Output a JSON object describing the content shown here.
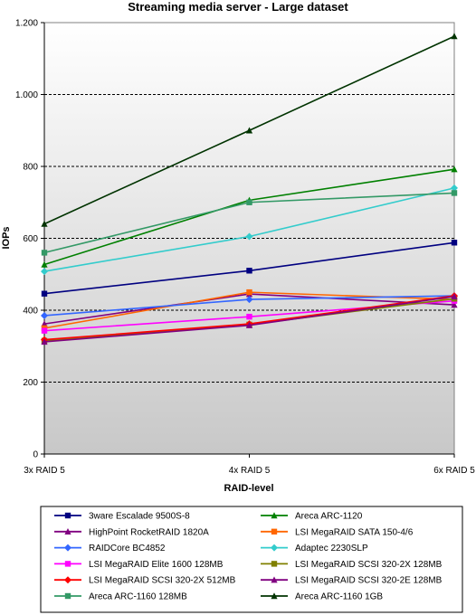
{
  "chart_data": {
    "type": "line",
    "title": "Streaming media server - Large dataset",
    "xlabel": "RAID-level",
    "ylabel": "IOPs",
    "categories": [
      "3x RAID 5",
      "4x RAID 5",
      "6x RAID 5"
    ],
    "ylim": [
      0,
      1200
    ],
    "yticks": [
      0,
      200,
      400,
      600,
      800,
      1000,
      1200
    ],
    "ytick_labels": [
      "0",
      "200",
      "400",
      "600",
      "800",
      "1.000",
      "1.200"
    ],
    "grid": "horizontal dashed",
    "legend_position": "bottom",
    "series": [
      {
        "name": "3ware Escalade 9500S-8",
        "color": "#000080",
        "marker": "square",
        "values": [
          446,
          510,
          588
        ]
      },
      {
        "name": "Areca ARC-1120",
        "color": "#008000",
        "marker": "triangle",
        "values": [
          527,
          706,
          792
        ]
      },
      {
        "name": "HighPoint RocketRAID 1820A",
        "color": "#800080",
        "marker": "triangle",
        "values": [
          362,
          445,
          415
        ]
      },
      {
        "name": "LSI MegaRAID SATA 150-4/6",
        "color": "#FF6600",
        "marker": "square",
        "values": [
          350,
          450,
          430
        ]
      },
      {
        "name": "RAIDCore BC4852",
        "color": "#3366FF",
        "marker": "diamond",
        "values": [
          385,
          430,
          440
        ]
      },
      {
        "name": "Adaptec 2230SLP",
        "color": "#33CCCC",
        "marker": "diamond",
        "values": [
          508,
          605,
          740
        ]
      },
      {
        "name": "LSI MegaRAID Elite 1600 128MB",
        "color": "#FF00FF",
        "marker": "square",
        "values": [
          343,
          382,
          426
        ]
      },
      {
        "name": "LSI MegaRAID SCSI 320-2X 128MB",
        "color": "#808000",
        "marker": "square",
        "values": [
          315,
          360,
          432
        ]
      },
      {
        "name": "LSI MegaRAID SCSI 320-2X 512MB",
        "color": "#FF0000",
        "marker": "diamond",
        "values": [
          318,
          362,
          440
        ]
      },
      {
        "name": "LSI MegaRAID SCSI 320-2E 128MB",
        "color": "#800080",
        "marker": "triangle",
        "values": [
          312,
          358,
          438
        ]
      },
      {
        "name": "Areca ARC-1160 128MB",
        "color": "#339966",
        "marker": "square",
        "values": [
          560,
          700,
          726
        ]
      },
      {
        "name": "Areca ARC-1160 1GB",
        "color": "#003300",
        "marker": "triangle",
        "values": [
          640,
          900,
          1162
        ]
      }
    ]
  }
}
